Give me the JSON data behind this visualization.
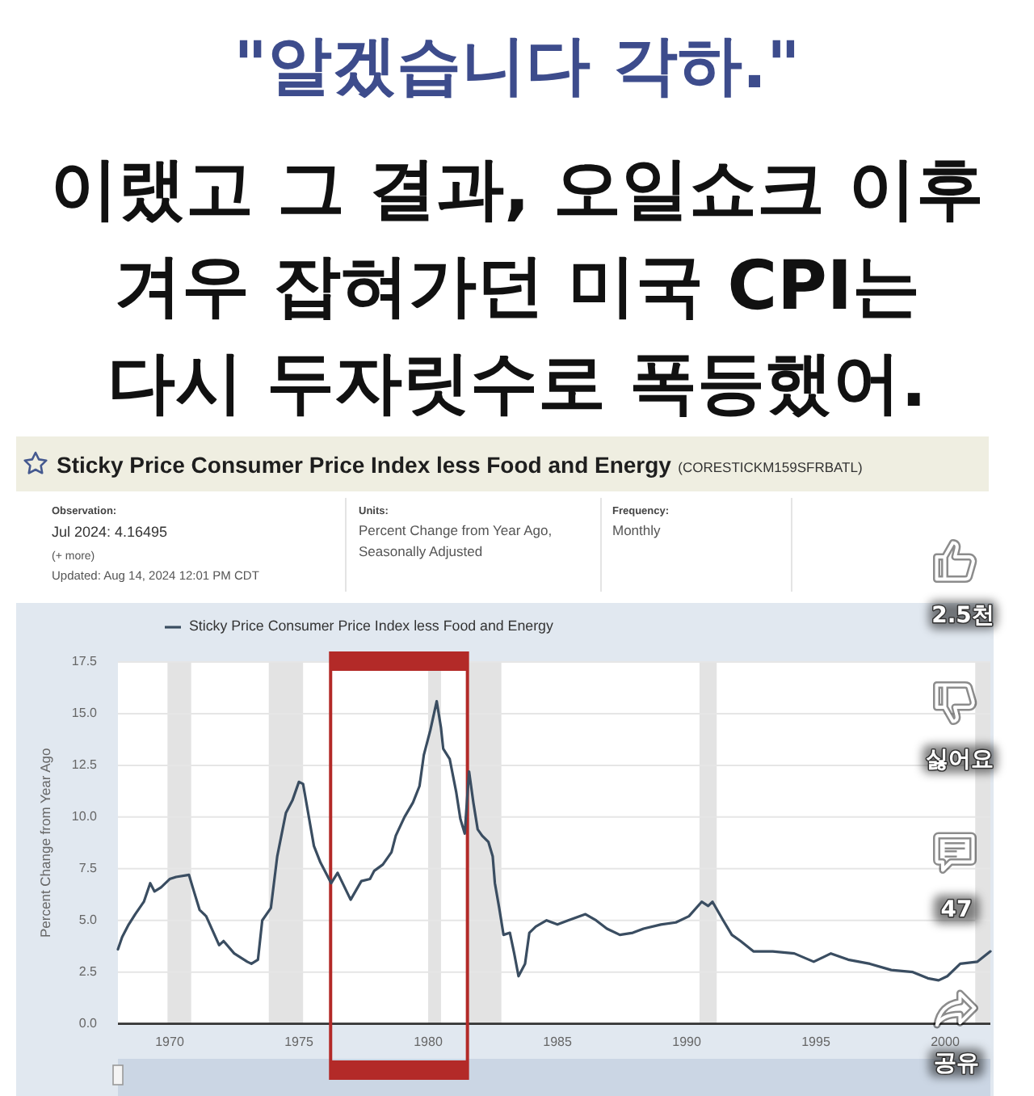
{
  "chart_data": {
    "type": "line",
    "title": "Sticky Price Consumer Price Index less Food and Energy",
    "subtitle": "(CORESTICKM159SFRBATL)",
    "ylabel": "Percent Change from Year Ago",
    "x": [
      "1968-01",
      "1968-03",
      "1968-06",
      "1968-09",
      "1969-01",
      "1969-04",
      "1969-06",
      "1969-09",
      "1970-01",
      "1970-04",
      "1970-10",
      "1970-12",
      "1971-03",
      "1971-06",
      "1971-12",
      "1972-02",
      "1972-07",
      "1973-01",
      "1973-03",
      "1973-06",
      "1973-08",
      "1973-12",
      "1974-03",
      "1974-07",
      "1974-10",
      "1975-01",
      "1975-03",
      "1975-05",
      "1975-08",
      "1975-11",
      "1976-02",
      "1976-04",
      "1976-07",
      "1977-01",
      "1977-06",
      "1977-10",
      "1977-12",
      "1978-04",
      "1978-08",
      "1978-10",
      "1979-02",
      "1979-06",
      "1979-09",
      "1979-11",
      "1980-02",
      "1980-05",
      "1980-07",
      "1980-08",
      "1980-11",
      "1981-02",
      "1981-04",
      "1981-06",
      "1981-08",
      "1981-10",
      "1981-12",
      "1982-02",
      "1982-05",
      "1982-07",
      "1982-08",
      "1982-10",
      "1982-12",
      "1983-03",
      "1983-05",
      "1983-07",
      "1983-10",
      "1983-12",
      "1984-03",
      "1984-08",
      "1985-01",
      "1985-06",
      "1986-02",
      "1986-07",
      "1986-12",
      "1987-06",
      "1987-12",
      "1988-05",
      "1989-01",
      "1989-08",
      "1990-02",
      "1990-08",
      "1990-11",
      "1991-01",
      "1991-06",
      "1991-10",
      "1992-02",
      "1992-08",
      "1993-05",
      "1994-03",
      "1994-12",
      "1995-08",
      "1996-04",
      "1997-02",
      "1997-12",
      "1998-10",
      "1999-05",
      "1999-10",
      "2000-02",
      "2000-08",
      "2001-04",
      "2001-10"
    ],
    "series": [
      {
        "name": "Sticky Price Consumer Price Index less Food and Energy",
        "color": "#3a4d61",
        "values": [
          3.6,
          4.2,
          4.8,
          5.3,
          5.9,
          6.8,
          6.4,
          6.6,
          7.0,
          7.1,
          7.2,
          6.5,
          5.5,
          5.2,
          3.8,
          4.0,
          3.4,
          3.0,
          2.9,
          3.1,
          5.0,
          5.6,
          8.1,
          10.2,
          10.8,
          11.7,
          11.6,
          10.4,
          8.6,
          7.8,
          7.2,
          6.8,
          7.3,
          6.0,
          6.9,
          7.0,
          7.4,
          7.7,
          8.3,
          9.1,
          10.0,
          10.7,
          11.5,
          13.0,
          14.2,
          15.6,
          14.3,
          13.3,
          12.8,
          11.2,
          9.9,
          9.2,
          12.2,
          10.7,
          9.4,
          9.1,
          8.8,
          8.1,
          6.8,
          5.6,
          4.3,
          4.4,
          3.4,
          2.3,
          2.9,
          4.4,
          4.7,
          5.0,
          4.8,
          5.0,
          5.3,
          5.0,
          4.6,
          4.3,
          4.4,
          4.6,
          4.8,
          4.9,
          5.2,
          5.9,
          5.7,
          5.9,
          5.0,
          4.3,
          4.0,
          3.5,
          3.5,
          3.4,
          3.0,
          3.4,
          3.1,
          2.9,
          2.6,
          2.5,
          2.2,
          2.1,
          2.3,
          2.9,
          3.0,
          3.5
        ]
      }
    ],
    "xlim": [
      "1968-01",
      "2001-10"
    ],
    "xticks": [
      "1970",
      "1975",
      "1980",
      "1985",
      "1990",
      "1995",
      "2000"
    ],
    "ylim": [
      0,
      17.5
    ],
    "yticks": [
      {
        "value": 0,
        "label": "0.0"
      },
      2.5,
      {
        "value": 5,
        "label": "5.0"
      },
      7.5,
      {
        "value": 10,
        "label": "10.0"
      },
      12.5,
      {
        "value": 15,
        "label": "15.0"
      },
      17.5
    ],
    "grid": "y",
    "legend": "top left",
    "line_style": "solid",
    "bands": [
      {
        "axis": "x",
        "from": "1969-12",
        "to": "1970-11",
        "color": "#e3e3e3"
      },
      {
        "axis": "x",
        "from": "1973-11",
        "to": "1975-03",
        "color": "#e3e3e3"
      },
      {
        "axis": "x",
        "from": "1980-01",
        "to": "1980-07",
        "color": "#e3e3e3"
      },
      {
        "axis": "x",
        "from": "1981-07",
        "to": "1982-11",
        "color": "#e3e3e3"
      },
      {
        "axis": "x",
        "from": "1990-07",
        "to": "1991-03",
        "color": "#e3e3e3"
      },
      {
        "axis": "x",
        "from": "2001-03",
        "to": "2001-10",
        "color": "#e3e3e3"
      },
      {
        "axis": "x",
        "from": "1976-03",
        "to": "1981-08",
        "color": "#b32a28"
      }
    ],
    "annotations": [
      "\"알겠습니다 각하.\"",
      "이랬고 그 결과, 오일쇼크 이후",
      "겨우 잡혀가던 미국 CPI는",
      "다시 두자릿수로 폭등했어.",
      "Observation:",
      "Jul 2024: 4.16495",
      "(+ more)",
      "Updated: Aug 14, 2024 12:01 PM CDT",
      "Units:",
      "Percent Change from Year Ago,",
      "Seasonally Adjusted",
      "Frequency:",
      "Monthly",
      "2.5천",
      "싫어요",
      "47",
      "공유"
    ]
  }
}
